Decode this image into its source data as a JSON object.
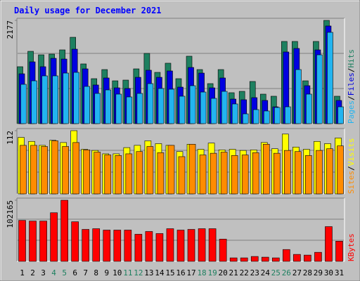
{
  "chart_data": [
    {
      "type": "bar",
      "title": "Daily usage for December 2021",
      "ylim": [
        0,
        2177
      ],
      "yticks": [
        2177
      ],
      "legend_separator": "/",
      "series": [
        {
          "name": "Hits",
          "color": "#1e8060",
          "values": [
            1200,
            1525,
            1451,
            1466,
            1555,
            1821,
            1259,
            948,
            1140,
            903,
            918,
            1155,
            1481,
            1081,
            1274,
            948,
            1422,
            1140,
            844,
            1140,
            652,
            681,
            889,
            622,
            578,
            1733,
            1733,
            903,
            1733,
            2177,
            578
          ]
        },
        {
          "name": "Files",
          "color": "#0000e0",
          "values": [
            1051,
            1303,
            1200,
            1377,
            1362,
            1570,
            1155,
            815,
            963,
            755,
            741,
            977,
            1126,
            977,
            1111,
            770,
            1185,
            1066,
            755,
            963,
            518,
            504,
            548,
            489,
            355,
            1511,
            1585,
            800,
            1555,
            2059,
            489
          ]
        },
        {
          "name": "Pages",
          "color": "#22b4f0",
          "values": [
            829,
            903,
            1007,
            1007,
            1066,
            1081,
            785,
            637,
            711,
            622,
            563,
            637,
            844,
            741,
            726,
            578,
            800,
            666,
            533,
            681,
            415,
            207,
            296,
            267,
            341,
            355,
            1140,
            622,
            1451,
            1925,
            355
          ]
        }
      ]
    },
    {
      "type": "bar",
      "ylim": [
        0,
        112
      ],
      "yticks": [
        112
      ],
      "legend_separator": "/",
      "series": [
        {
          "name": "Visits",
          "color": "#ffff00",
          "values": [
            100,
            93,
            86,
            95,
            91,
            112,
            79,
            77,
            71,
            71,
            82,
            86,
            94,
            89,
            86,
            75,
            88,
            79,
            90,
            78,
            79,
            77,
            78,
            91,
            80,
            106,
            83,
            79,
            93,
            89,
            99
          ]
        },
        {
          "name": "Sites",
          "color": "#ff8c00",
          "values": [
            86,
            86,
            84,
            94,
            84,
            91,
            78,
            74,
            69,
            68,
            71,
            75,
            84,
            73,
            86,
            66,
            88,
            69,
            72,
            74,
            68,
            69,
            73,
            88,
            72,
            77,
            75,
            68,
            77,
            80,
            85
          ]
        }
      ]
    },
    {
      "type": "bar",
      "ylim": [
        0,
        102165
      ],
      "yticks": [
        102165
      ],
      "categories": [
        "1",
        "2",
        "3",
        "4",
        "5",
        "6",
        "7",
        "8",
        "9",
        "10",
        "11",
        "12",
        "13",
        "14",
        "15",
        "16",
        "17",
        "18",
        "19",
        "20",
        "21",
        "22",
        "23",
        "24",
        "25",
        "26",
        "27",
        "28",
        "29",
        "30",
        "31"
      ],
      "category_colors": [
        "#000000",
        "#000000",
        "#000000",
        "#1e8060",
        "#1e8060",
        "#000000",
        "#000000",
        "#000000",
        "#000000",
        "#000000",
        "#1e8060",
        "#1e8060",
        "#000000",
        "#000000",
        "#000000",
        "#000000",
        "#000000",
        "#1e8060",
        "#1e8060",
        "#000000",
        "#000000",
        "#000000",
        "#000000",
        "#000000",
        "#1e8060",
        "#1e8060",
        "#000000",
        "#000000",
        "#000000",
        "#000000",
        "#000000"
      ],
      "series": [
        {
          "name": "KBytes",
          "color": "#ff0000",
          "values": [
            68500,
            67340,
            67340,
            81270,
            102165,
            66180,
            53400,
            54570,
            52240,
            52240,
            52240,
            45280,
            49920,
            46440,
            54570,
            52240,
            53400,
            54570,
            54570,
            37150,
            5800,
            5800,
            8130,
            6970,
            5800,
            19740,
            11610,
            10450,
            15090,
            58050,
            33670
          ]
        }
      ]
    }
  ]
}
